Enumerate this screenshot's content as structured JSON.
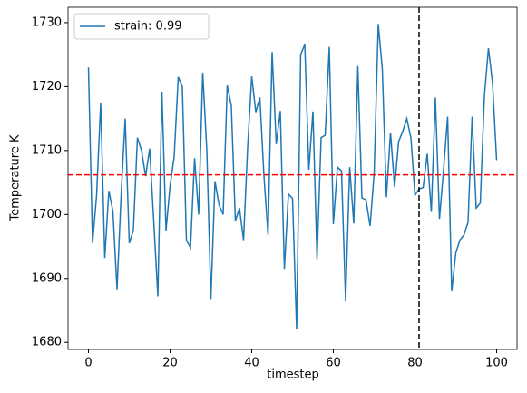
{
  "chart_data": {
    "type": "line",
    "xlabel": "timestep",
    "ylabel": "Temperature K",
    "x": [
      0,
      1,
      2,
      3,
      4,
      5,
      6,
      7,
      8,
      9,
      10,
      11,
      12,
      13,
      14,
      15,
      16,
      17,
      18,
      19,
      20,
      21,
      22,
      23,
      24,
      25,
      26,
      27,
      28,
      29,
      30,
      31,
      32,
      33,
      34,
      35,
      36,
      37,
      38,
      39,
      40,
      41,
      42,
      43,
      44,
      45,
      46,
      47,
      48,
      49,
      50,
      51,
      52,
      53,
      54,
      55,
      56,
      57,
      58,
      59,
      60,
      61,
      62,
      63,
      64,
      65,
      66,
      67,
      68,
      69,
      70,
      71,
      72,
      73,
      74,
      75,
      76,
      77,
      78,
      79,
      80,
      81,
      82,
      83,
      84,
      85,
      86,
      87,
      88,
      89,
      90,
      91,
      92,
      93,
      94,
      95,
      96,
      97,
      98,
      99,
      100
    ],
    "series": [
      {
        "name": "strain: 0.99",
        "color": "#1f77b4",
        "values": [
          1723,
          1695.5,
          1703,
          1717.5,
          1693.2,
          1703.7,
          1700.5,
          1688.3,
          1703,
          1715,
          1695.5,
          1697.5,
          1712,
          1710,
          1706,
          1710.3,
          1699,
          1687.2,
          1719.2,
          1697.5,
          1704.5,
          1709,
          1721.5,
          1720,
          1696,
          1694.8,
          1708.8,
          1700,
          1722.2,
          1710,
          1686.8,
          1705.2,
          1701.5,
          1700,
          1720.2,
          1717,
          1699,
          1701,
          1696,
          1710.5,
          1721.6,
          1716,
          1718.3,
          1706,
          1696.8,
          1725.4,
          1711,
          1716.2,
          1691.5,
          1703.2,
          1702.5,
          1682,
          1725,
          1726.6,
          1707,
          1716.1,
          1693,
          1712,
          1712.4,
          1726.2,
          1698.5,
          1707.4,
          1706.8,
          1686.4,
          1707.4,
          1698.6,
          1723.2,
          1702.6,
          1702.3,
          1698.2,
          1706.5,
          1729.8,
          1722.7,
          1702.7,
          1712.8,
          1704.3,
          1711.4,
          1713,
          1715,
          1712,
          1703,
          1704,
          1704.2,
          1709.5,
          1700.4,
          1718.3,
          1699.3,
          1707,
          1715.3,
          1688,
          1694,
          1696,
          1696.8,
          1698.8,
          1715.3,
          1701,
          1701.8,
          1718.5,
          1726,
          1720.5,
          1708.5
        ]
      }
    ],
    "hlines": [
      {
        "y": 1706.2,
        "color": "#ff0000"
      }
    ],
    "vlines": [
      {
        "x": 81,
        "color": "#000000"
      }
    ],
    "xlim": [
      -5,
      105
    ],
    "ylim": [
      1678.9,
      1732.4
    ],
    "xticks": [
      0,
      20,
      40,
      60,
      80,
      100
    ],
    "yticks": [
      1680,
      1690,
      1700,
      1710,
      1720,
      1730
    ],
    "legend": "upper left"
  }
}
